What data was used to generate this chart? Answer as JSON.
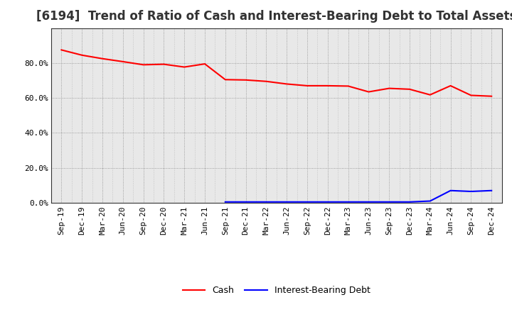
{
  "title": "[6194]  Trend of Ratio of Cash and Interest-Bearing Debt to Total Assets",
  "x_labels": [
    "Sep-19",
    "Dec-19",
    "Mar-20",
    "Jun-20",
    "Sep-20",
    "Dec-20",
    "Mar-21",
    "Jun-21",
    "Sep-21",
    "Dec-21",
    "Mar-22",
    "Jun-22",
    "Sep-22",
    "Dec-22",
    "Mar-23",
    "Jun-23",
    "Sep-23",
    "Dec-23",
    "Mar-24",
    "Jun-24",
    "Sep-24",
    "Dec-24"
  ],
  "cash": [
    0.875,
    0.845,
    0.825,
    0.808,
    0.79,
    0.793,
    0.777,
    0.795,
    0.705,
    0.703,
    0.695,
    0.68,
    0.67,
    0.67,
    0.668,
    0.635,
    0.655,
    0.65,
    0.618,
    0.67,
    0.615,
    0.61
  ],
  "ibd": [
    null,
    null,
    null,
    null,
    null,
    null,
    null,
    null,
    0.005,
    0.005,
    0.005,
    0.005,
    0.005,
    0.005,
    0.005,
    0.005,
    0.005,
    0.005,
    0.01,
    0.07,
    0.065,
    0.07
  ],
  "cash_color": "#ff0000",
  "ibd_color": "#0000ff",
  "fig_bg_color": "#ffffff",
  "plot_bg_color": "#e8e8e8",
  "ylim": [
    0.0,
    1.0
  ],
  "yticks": [
    0.0,
    0.2,
    0.4,
    0.6,
    0.8
  ],
  "ytick_labels": [
    "0.0%",
    "20.0%",
    "40.0%",
    "60.0%",
    "80.0%"
  ],
  "legend_cash": "Cash",
  "legend_ibd": "Interest-Bearing Debt",
  "title_fontsize": 12,
  "tick_fontsize": 8,
  "legend_fontsize": 9,
  "line_width": 1.5
}
